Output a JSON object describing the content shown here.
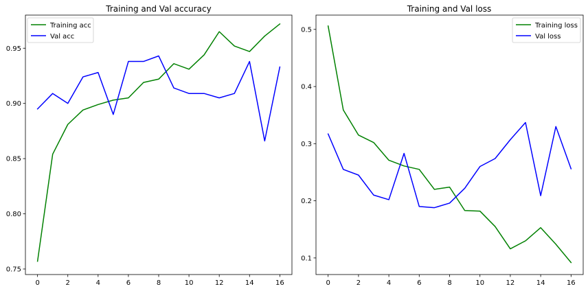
{
  "chart_data": [
    {
      "type": "line",
      "title": "Training and Val accuracy",
      "xlabel": "",
      "ylabel": "",
      "x": [
        0,
        1,
        2,
        3,
        4,
        5,
        6,
        7,
        8,
        9,
        10,
        11,
        12,
        13,
        14,
        15,
        16
      ],
      "xlim": [
        -0.8,
        16.8
      ],
      "ylim": [
        0.745,
        0.98
      ],
      "xticks": [
        0,
        2,
        4,
        6,
        8,
        10,
        12,
        14,
        16
      ],
      "xtick_labels": [
        "0",
        "2",
        "4",
        "6",
        "8",
        "10",
        "12",
        "14",
        "16"
      ],
      "yticks": [
        0.75,
        0.8,
        0.85,
        0.9,
        0.95
      ],
      "ytick_labels": [
        "0.75",
        "0.80",
        "0.85",
        "0.90",
        "0.95"
      ],
      "grid": false,
      "legend_position": "top-left",
      "series": [
        {
          "name": "Training acc",
          "color": "#008000",
          "values": [
            0.757,
            0.854,
            0.881,
            0.894,
            0.899,
            0.903,
            0.905,
            0.919,
            0.922,
            0.936,
            0.931,
            0.944,
            0.965,
            0.952,
            0.947,
            0.961,
            0.972
          ]
        },
        {
          "name": "Val acc",
          "color": "#0000ff",
          "values": [
            0.895,
            0.909,
            0.9,
            0.924,
            0.928,
            0.89,
            0.938,
            0.938,
            0.943,
            0.914,
            0.909,
            0.909,
            0.905,
            0.909,
            0.938,
            0.866,
            0.933
          ]
        }
      ]
    },
    {
      "type": "line",
      "title": "Training and Val loss",
      "xlabel": "",
      "ylabel": "",
      "x": [
        0,
        1,
        2,
        3,
        4,
        5,
        6,
        7,
        8,
        9,
        10,
        11,
        12,
        13,
        14,
        15,
        16
      ],
      "xlim": [
        -0.8,
        16.8
      ],
      "ylim": [
        0.071,
        0.525
      ],
      "xticks": [
        0,
        2,
        4,
        6,
        8,
        10,
        12,
        14,
        16
      ],
      "xtick_labels": [
        "0",
        "2",
        "4",
        "6",
        "8",
        "10",
        "12",
        "14",
        "16"
      ],
      "yticks": [
        0.1,
        0.2,
        0.3,
        0.4,
        0.5
      ],
      "ytick_labels": [
        "0.1",
        "0.2",
        "0.3",
        "0.4",
        "0.5"
      ],
      "grid": false,
      "legend_position": "top-right",
      "series": [
        {
          "name": "Training loss",
          "color": "#008000",
          "values": [
            0.506,
            0.359,
            0.315,
            0.302,
            0.271,
            0.261,
            0.255,
            0.22,
            0.224,
            0.183,
            0.182,
            0.155,
            0.116,
            0.13,
            0.153,
            0.124,
            0.092
          ]
        },
        {
          "name": "Val loss",
          "color": "#0000ff",
          "values": [
            0.317,
            0.255,
            0.245,
            0.21,
            0.202,
            0.283,
            0.19,
            0.188,
            0.196,
            0.222,
            0.26,
            0.274,
            0.307,
            0.337,
            0.209,
            0.33,
            0.256
          ]
        }
      ]
    }
  ]
}
